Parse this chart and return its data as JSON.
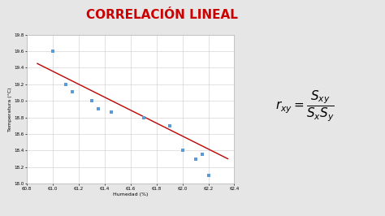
{
  "title": "CORRELACIÓN LINEAL",
  "title_color": "#CC0000",
  "title_fontsize": 11,
  "xlabel": "Humedad (%)",
  "ylabel": "Temperatura (°C)",
  "scatter_x": [
    61.0,
    61.1,
    61.15,
    61.3,
    61.35,
    61.45,
    61.7,
    61.9,
    62.0,
    62.1,
    62.15,
    62.2
  ],
  "scatter_y": [
    19.6,
    19.2,
    19.11,
    19.0,
    18.9,
    18.86,
    18.8,
    18.7,
    18.4,
    18.3,
    18.35,
    18.1
  ],
  "scatter_color": "#5B9BD5",
  "line_color": "#C00000",
  "line_x": [
    60.88,
    62.35
  ],
  "line_y": [
    19.45,
    18.3
  ],
  "xlim": [
    60.8,
    62.4
  ],
  "ylim": [
    18.0,
    19.8
  ],
  "xticks": [
    60.8,
    61.0,
    61.2,
    61.4,
    61.6,
    61.8,
    62.0,
    62.2,
    62.4
  ],
  "yticks": [
    18.0,
    18.2,
    18.4,
    18.6,
    18.8,
    19.0,
    19.2,
    19.4,
    19.6,
    19.8
  ],
  "bg_color": "#E6E6E6",
  "plot_bg_color": "#FFFFFF",
  "grid_color": "#CCCCCC"
}
